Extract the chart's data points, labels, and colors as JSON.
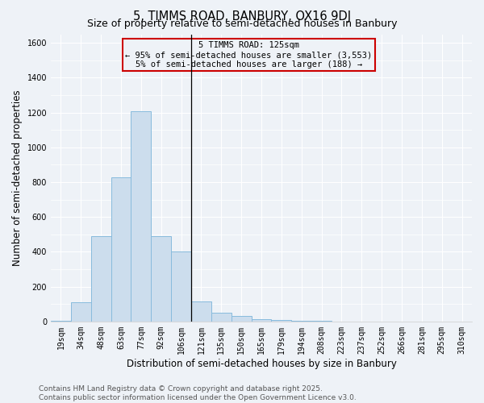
{
  "title": "5, TIMMS ROAD, BANBURY, OX16 9DJ",
  "subtitle": "Size of property relative to semi-detached houses in Banbury",
  "xlabel": "Distribution of semi-detached houses by size in Banbury",
  "ylabel": "Number of semi-detached properties",
  "categories": [
    "19sqm",
    "34sqm",
    "48sqm",
    "63sqm",
    "77sqm",
    "92sqm",
    "106sqm",
    "121sqm",
    "135sqm",
    "150sqm",
    "165sqm",
    "179sqm",
    "194sqm",
    "208sqm",
    "223sqm",
    "237sqm",
    "252sqm",
    "266sqm",
    "281sqm",
    "295sqm",
    "310sqm"
  ],
  "values": [
    5,
    110,
    490,
    830,
    1210,
    490,
    400,
    115,
    50,
    30,
    15,
    8,
    4,
    2,
    1,
    0,
    0,
    0,
    0,
    0,
    0
  ],
  "bar_color": "#ccdded",
  "bar_edgecolor": "#88bbdd",
  "highlight_bin_index": 7,
  "annotation_title": "5 TIMMS ROAD: 125sqm",
  "annotation_line1": "← 95% of semi-detached houses are smaller (3,553)",
  "annotation_line2": "5% of semi-detached houses are larger (188) →",
  "vline_color": "#000000",
  "annotation_box_edgecolor": "#cc0000",
  "ylim": [
    0,
    1650
  ],
  "yticks": [
    0,
    200,
    400,
    600,
    800,
    1000,
    1200,
    1400,
    1600
  ],
  "footer_line1": "Contains HM Land Registry data © Crown copyright and database right 2025.",
  "footer_line2": "Contains public sector information licensed under the Open Government Licence v3.0.",
  "bg_color": "#eef2f7",
  "grid_color": "#ffffff",
  "title_fontsize": 10.5,
  "subtitle_fontsize": 9,
  "axis_label_fontsize": 8.5,
  "tick_fontsize": 7,
  "annotation_fontsize": 7.5,
  "footer_fontsize": 6.5
}
